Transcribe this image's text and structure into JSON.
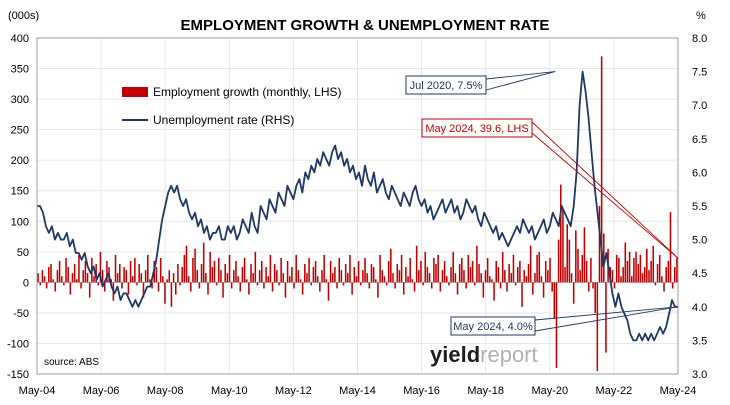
{
  "chart_data": {
    "type": "bar",
    "title": "EMPLOYMENT GROWTH & UNEMPLOYMENT RATE",
    "y_left_unit": "(000s)",
    "y_right_unit": "%",
    "ylim_left": [
      -150,
      400
    ],
    "ylim_right": [
      3.0,
      8.0
    ],
    "grid": true,
    "legend_position": "top-left",
    "x_tick_labels": [
      "May-04",
      "May-06",
      "May-08",
      "May-10",
      "May-12",
      "May-14",
      "May-16",
      "May-18",
      "May-20",
      "May-22",
      "May-24"
    ],
    "y_left_ticks": [
      "400",
      "350",
      "300",
      "250",
      "200",
      "150",
      "100",
      "50",
      "0",
      "-50",
      "-100",
      "-150"
    ],
    "y_right_ticks": [
      "8.0",
      "7.5",
      "7.0",
      "6.5",
      "6.0",
      "5.5",
      "5.0",
      "4.5",
      "4.0",
      "3.5",
      "3.0"
    ],
    "x_start": "2004-05",
    "x_end": "2024-05",
    "series": [
      {
        "name": "Employment growth (monthly, LHS)",
        "kind": "bar",
        "axis": "left",
        "color": "#c00000",
        "values": [
          15,
          -5,
          20,
          10,
          -10,
          25,
          30,
          5,
          -15,
          20,
          35,
          10,
          -5,
          40,
          25,
          -20,
          15,
          30,
          5,
          45,
          -10,
          20,
          35,
          15,
          -25,
          40,
          10,
          30,
          -5,
          50,
          20,
          -15,
          35,
          25,
          5,
          -30,
          45,
          15,
          30,
          -10,
          25,
          20,
          -20,
          35,
          10,
          40,
          -5,
          30,
          15,
          -25,
          20,
          45,
          5,
          -10,
          35,
          25,
          -15,
          40,
          10,
          -35,
          5,
          20,
          -40,
          15,
          -20,
          30,
          -5,
          25,
          45,
          60,
          10,
          -15,
          40,
          55,
          20,
          -10,
          30,
          65,
          15,
          -20,
          50,
          25,
          35,
          -5,
          40,
          20,
          -25,
          30,
          15,
          45,
          -10,
          20,
          35,
          10,
          -15,
          25,
          40,
          5,
          -20,
          30,
          15,
          50,
          -5,
          20,
          35,
          -10,
          25,
          10,
          45,
          -15,
          30,
          20,
          -5,
          40,
          15,
          -25,
          35,
          10,
          25,
          -10,
          45,
          20,
          5,
          -20,
          30,
          15,
          40,
          -5,
          25,
          35,
          10,
          -15,
          20,
          45,
          5,
          -30,
          35,
          15,
          25,
          -10,
          40,
          20,
          -5,
          30,
          15,
          45,
          -20,
          25,
          10,
          35,
          -5,
          20,
          40,
          15,
          -10,
          30,
          25,
          5,
          -25,
          45,
          20,
          10,
          -5,
          35,
          55,
          15,
          -10,
          30,
          20,
          45,
          -20,
          25,
          10,
          40,
          5,
          -15,
          60,
          20,
          35,
          -5,
          50,
          25,
          15,
          -10,
          40,
          30,
          45,
          -15,
          20,
          35,
          10,
          -5,
          25,
          50,
          15,
          -20,
          30,
          40,
          20,
          -10,
          45,
          25,
          35,
          -5,
          60,
          30,
          15,
          -25,
          20,
          40,
          10,
          5,
          -30,
          35,
          25,
          -10,
          50,
          20,
          -15,
          30,
          15,
          45,
          -5,
          25,
          35,
          -40,
          20,
          10,
          30,
          60,
          -20,
          15,
          45,
          50,
          10,
          -25,
          35,
          20,
          40,
          -15,
          -60,
          -140,
          70,
          160,
          120,
          25,
          95,
          70,
          15,
          -35,
          85,
          55,
          20,
          45,
          90,
          35,
          -15,
          40,
          -10,
          -50,
          -145,
          125,
          370,
          80,
          -115,
          55,
          25,
          20,
          -10,
          45,
          40,
          10,
          25,
          65,
          35,
          50,
          10,
          40,
          50,
          30,
          45,
          15,
          25,
          55,
          20,
          35,
          60,
          -5,
          30,
          45,
          10,
          -15,
          25,
          35,
          115,
          -10,
          25,
          40
        ]
      },
      {
        "name": "Unemployment rate (RHS)",
        "kind": "line",
        "axis": "right",
        "color": "#1f3864",
        "values": [
          5.5,
          5.5,
          5.4,
          5.2,
          5.1,
          5.2,
          5.0,
          5.1,
          5.0,
          5.0,
          5.1,
          4.9,
          5.0,
          4.8,
          4.8,
          4.7,
          4.8,
          4.6,
          4.5,
          4.6,
          4.4,
          4.5,
          4.3,
          4.4,
          4.5,
          4.3,
          4.2,
          4.3,
          4.1,
          4.2,
          4.2,
          4.1,
          4.0,
          4.1,
          4.0,
          4.1,
          4.2,
          4.3,
          4.3,
          4.5,
          4.7,
          5.0,
          5.3,
          5.5,
          5.7,
          5.8,
          5.7,
          5.8,
          5.6,
          5.5,
          5.6,
          5.4,
          5.3,
          5.4,
          5.2,
          5.3,
          5.1,
          5.2,
          5.0,
          5.1,
          5.1,
          5.2,
          5.0,
          5.0,
          5.2,
          5.1,
          5.2,
          5.0,
          5.1,
          5.3,
          5.2,
          5.1,
          5.4,
          5.2,
          5.1,
          5.5,
          5.4,
          5.3,
          5.6,
          5.5,
          5.4,
          5.7,
          5.6,
          5.5,
          5.8,
          5.7,
          5.6,
          5.8,
          5.9,
          5.7,
          6.0,
          5.9,
          6.1,
          6.0,
          6.2,
          6.1,
          6.3,
          6.2,
          6.1,
          6.3,
          6.4,
          6.2,
          6.3,
          6.1,
          6.2,
          6.0,
          6.1,
          5.9,
          6.0,
          5.8,
          6.1,
          5.9,
          5.8,
          6.0,
          5.7,
          5.8,
          5.9,
          5.7,
          5.6,
          5.8,
          5.7,
          5.6,
          5.5,
          5.7,
          5.6,
          5.5,
          5.7,
          5.8,
          5.6,
          5.5,
          5.6,
          5.4,
          5.5,
          5.3,
          5.4,
          5.5,
          5.6,
          5.4,
          5.5,
          5.6,
          5.4,
          5.5,
          5.3,
          5.4,
          5.6,
          5.5,
          5.4,
          5.5,
          5.3,
          5.2,
          5.4,
          5.3,
          5.2,
          5.1,
          5.2,
          5.0,
          5.1,
          5.0,
          4.9,
          5.0,
          5.1,
          5.2,
          5.1,
          5.3,
          5.2,
          5.1,
          5.2,
          5.0,
          5.1,
          5.2,
          5.3,
          5.1,
          5.2,
          5.4,
          5.3,
          5.2,
          5.5,
          5.4,
          5.3,
          5.2,
          5.5,
          6.0,
          7.0,
          7.5,
          7.2,
          6.8,
          6.3,
          5.8,
          5.4,
          5.0,
          4.6,
          4.8,
          4.5,
          4.2,
          4.0,
          4.2,
          4.0,
          3.9,
          3.8,
          3.6,
          3.5,
          3.5,
          3.6,
          3.5,
          3.6,
          3.5,
          3.6,
          3.5,
          3.6,
          3.7,
          3.6,
          3.7,
          3.9,
          4.1,
          4.0,
          4.0
        ]
      }
    ],
    "annotations": [
      {
        "text": "Jul 2020, 7.5%",
        "date": "2020-07",
        "value": 7.5,
        "axis": "right",
        "color": "#1f3864"
      },
      {
        "text": "May 2024, 39.6, LHS",
        "date": "2024-05",
        "value": 39.6,
        "axis": "left",
        "color": "#c00000"
      },
      {
        "text": "May 2024, 4.0%",
        "date": "2024-05",
        "value": 4.0,
        "axis": "right",
        "color": "#1f3864"
      }
    ],
    "source": "source: ABS",
    "brand": {
      "part1": "yield",
      "part2": "report"
    }
  }
}
